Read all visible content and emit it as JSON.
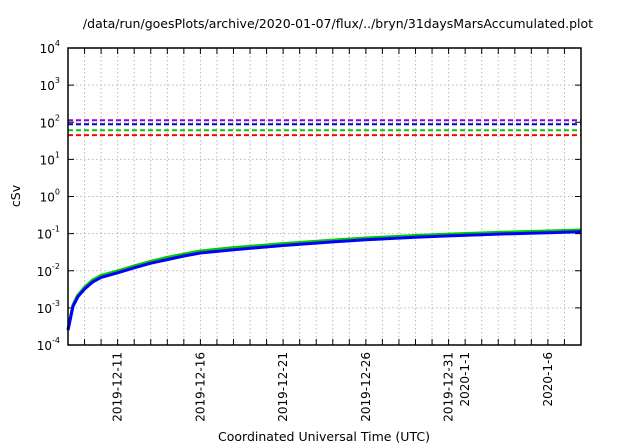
{
  "chart_data": {
    "type": "line",
    "title": "/data/run/goesPlots/archive/2020-01-07/flux/../bryn/31daysMarsAccumulated.plot",
    "xlabel": "Coordinated Universal Time (UTC)",
    "ylabel": "cSv",
    "yscale": "log",
    "ylim": [
      0.0001,
      10000
    ],
    "y_ticks": [
      {
        "base": "10",
        "exp": "-4"
      },
      {
        "base": "10",
        "exp": "-3"
      },
      {
        "base": "10",
        "exp": "-2"
      },
      {
        "base": "10",
        "exp": "-1"
      },
      {
        "base": "10",
        "exp": "0"
      },
      {
        "base": "10",
        "exp": "1"
      },
      {
        "base": "10",
        "exp": "2"
      },
      {
        "base": "10",
        "exp": "3"
      },
      {
        "base": "10",
        "exp": "4"
      }
    ],
    "xlim_days": [
      0,
      31
    ],
    "x_start": "2019-12-08",
    "x_tick_labels": [
      {
        "day": 3,
        "label": "2019-12-11"
      },
      {
        "day": 8,
        "label": "2019-12-16"
      },
      {
        "day": 13,
        "label": "2019-12-21"
      },
      {
        "day": 18,
        "label": "2019-12-26"
      },
      {
        "day": 23,
        "label": "2019-12-31"
      },
      {
        "day": 24,
        "label": "2020-1-1"
      },
      {
        "day": 29,
        "label": "2020-1-6"
      }
    ],
    "grid": true,
    "thresholds": [
      {
        "value": 113,
        "color": "#9400d3"
      },
      {
        "value": 88,
        "color": "#0000cc"
      },
      {
        "value": 61,
        "color": "#00cc00"
      },
      {
        "value": 45,
        "color": "#ff0000"
      }
    ],
    "x": [
      0,
      0.3,
      0.6,
      1,
      1.5,
      2,
      3,
      4,
      5,
      6,
      7,
      8,
      10,
      13,
      16,
      18,
      21,
      23,
      26,
      29,
      31
    ],
    "series": [
      {
        "name": "red",
        "color": "#ff0000",
        "values": [
          0.00026,
          0.0012,
          0.0022,
          0.0035,
          0.0055,
          0.0072,
          0.0095,
          0.013,
          0.017,
          0.022,
          0.027,
          0.033,
          0.041,
          0.052,
          0.065,
          0.074,
          0.087,
          0.095,
          0.105,
          0.115,
          0.122
        ]
      },
      {
        "name": "green",
        "color": "#00cc00",
        "values": [
          0.00026,
          0.0012,
          0.0022,
          0.0036,
          0.0057,
          0.0075,
          0.0099,
          0.0135,
          0.018,
          0.023,
          0.028,
          0.034,
          0.042,
          0.054,
          0.067,
          0.076,
          0.089,
          0.097,
          0.108,
          0.118,
          0.125
        ]
      },
      {
        "name": "blue",
        "color": "#0000ff",
        "values": [
          0.00025,
          0.0011,
          0.002,
          0.0032,
          0.005,
          0.0066,
          0.0088,
          0.012,
          0.016,
          0.02,
          0.025,
          0.03,
          0.037,
          0.048,
          0.06,
          0.068,
          0.08,
          0.087,
          0.097,
          0.106,
          0.112
        ]
      }
    ]
  }
}
